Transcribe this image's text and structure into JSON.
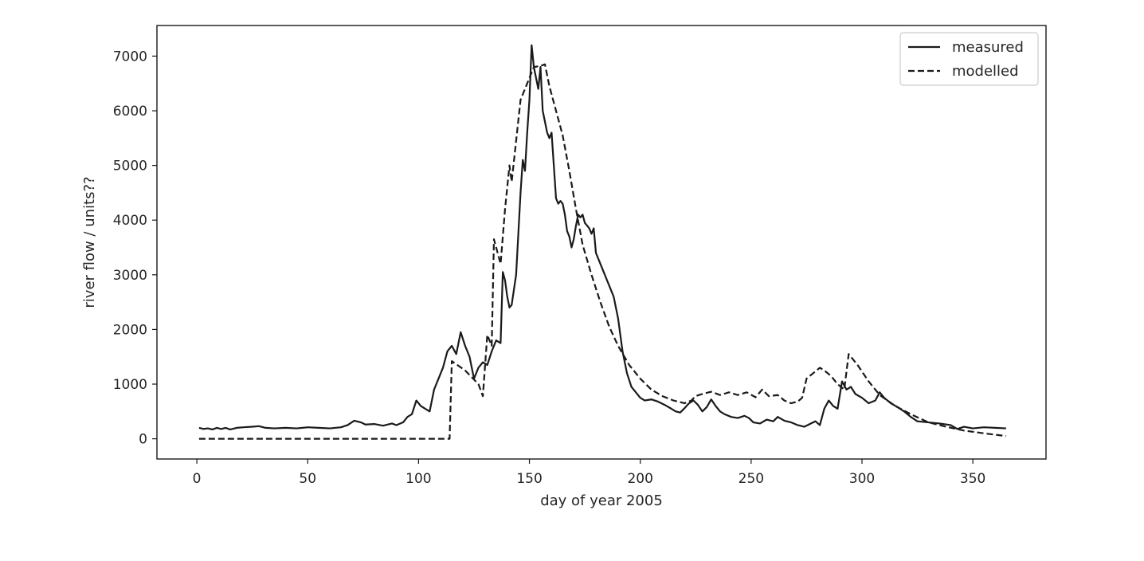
{
  "chart_data": {
    "type": "line",
    "title": "",
    "xlabel": "day of year 2005",
    "ylabel": "river flow / units??",
    "xlim": [
      -18,
      383
    ],
    "ylim": [
      -370,
      7560
    ],
    "xticks": [
      0,
      50,
      100,
      150,
      200,
      250,
      300,
      350
    ],
    "yticks": [
      0,
      1000,
      2000,
      3000,
      4000,
      5000,
      6000,
      7000
    ],
    "grid": false,
    "legend_position": "upper right",
    "series": [
      {
        "name": "measured",
        "style": "solid",
        "color": "#1a1a1a",
        "points": [
          [
            1,
            200
          ],
          [
            3,
            180
          ],
          [
            5,
            190
          ],
          [
            7,
            170
          ],
          [
            9,
            200
          ],
          [
            11,
            180
          ],
          [
            13,
            200
          ],
          [
            15,
            170
          ],
          [
            18,
            200
          ],
          [
            21,
            210
          ],
          [
            25,
            220
          ],
          [
            28,
            230
          ],
          [
            31,
            200
          ],
          [
            35,
            190
          ],
          [
            40,
            200
          ],
          [
            45,
            190
          ],
          [
            50,
            210
          ],
          [
            55,
            200
          ],
          [
            60,
            190
          ],
          [
            65,
            210
          ],
          [
            68,
            250
          ],
          [
            71,
            330
          ],
          [
            74,
            300
          ],
          [
            76,
            260
          ],
          [
            80,
            270
          ],
          [
            84,
            240
          ],
          [
            88,
            280
          ],
          [
            90,
            250
          ],
          [
            93,
            300
          ],
          [
            95,
            400
          ],
          [
            97,
            450
          ],
          [
            99,
            700
          ],
          [
            101,
            600
          ],
          [
            103,
            550
          ],
          [
            105,
            500
          ],
          [
            107,
            900
          ],
          [
            109,
            1100
          ],
          [
            111,
            1300
          ],
          [
            113,
            1600
          ],
          [
            115,
            1700
          ],
          [
            117,
            1550
          ],
          [
            119,
            1950
          ],
          [
            121,
            1700
          ],
          [
            123,
            1500
          ],
          [
            125,
            1100
          ],
          [
            127,
            1300
          ],
          [
            129,
            1400
          ],
          [
            131,
            1350
          ],
          [
            133,
            1600
          ],
          [
            135,
            1800
          ],
          [
            137,
            1750
          ],
          [
            138,
            3050
          ],
          [
            139,
            2900
          ],
          [
            140,
            2600
          ],
          [
            141,
            2400
          ],
          [
            142,
            2450
          ],
          [
            144,
            3000
          ],
          [
            146,
            4500
          ],
          [
            147,
            5100
          ],
          [
            148,
            4900
          ],
          [
            149,
            5600
          ],
          [
            150,
            6200
          ],
          [
            151,
            7200
          ],
          [
            152,
            6800
          ],
          [
            153,
            6600
          ],
          [
            154,
            6400
          ],
          [
            155,
            6800
          ],
          [
            156,
            6000
          ],
          [
            157,
            5800
          ],
          [
            158,
            5600
          ],
          [
            159,
            5500
          ],
          [
            160,
            5600
          ],
          [
            161,
            5000
          ],
          [
            162,
            4400
          ],
          [
            163,
            4300
          ],
          [
            164,
            4350
          ],
          [
            165,
            4300
          ],
          [
            166,
            4100
          ],
          [
            167,
            3800
          ],
          [
            168,
            3700
          ],
          [
            169,
            3500
          ],
          [
            170,
            3650
          ],
          [
            171,
            3900
          ],
          [
            172,
            4100
          ],
          [
            173,
            4050
          ],
          [
            174,
            4100
          ],
          [
            175,
            3950
          ],
          [
            176,
            3900
          ],
          [
            177,
            3850
          ],
          [
            178,
            3750
          ],
          [
            179,
            3850
          ],
          [
            180,
            3400
          ],
          [
            181,
            3300
          ],
          [
            182,
            3200
          ],
          [
            184,
            3000
          ],
          [
            186,
            2800
          ],
          [
            188,
            2600
          ],
          [
            190,
            2200
          ],
          [
            192,
            1600
          ],
          [
            194,
            1200
          ],
          [
            196,
            950
          ],
          [
            198,
            850
          ],
          [
            200,
            750
          ],
          [
            202,
            700
          ],
          [
            205,
            720
          ],
          [
            208,
            680
          ],
          [
            211,
            620
          ],
          [
            214,
            550
          ],
          [
            216,
            500
          ],
          [
            218,
            480
          ],
          [
            220,
            560
          ],
          [
            222,
            650
          ],
          [
            224,
            700
          ],
          [
            226,
            620
          ],
          [
            228,
            500
          ],
          [
            230,
            580
          ],
          [
            232,
            720
          ],
          [
            234,
            600
          ],
          [
            236,
            500
          ],
          [
            238,
            450
          ],
          [
            241,
            400
          ],
          [
            244,
            380
          ],
          [
            247,
            420
          ],
          [
            249,
            380
          ],
          [
            251,
            300
          ],
          [
            254,
            280
          ],
          [
            257,
            350
          ],
          [
            260,
            320
          ],
          [
            262,
            400
          ],
          [
            265,
            330
          ],
          [
            268,
            300
          ],
          [
            271,
            250
          ],
          [
            274,
            220
          ],
          [
            277,
            280
          ],
          [
            279,
            320
          ],
          [
            281,
            250
          ],
          [
            283,
            550
          ],
          [
            285,
            700
          ],
          [
            287,
            600
          ],
          [
            289,
            550
          ],
          [
            291,
            1050
          ],
          [
            293,
            900
          ],
          [
            295,
            950
          ],
          [
            297,
            820
          ],
          [
            300,
            750
          ],
          [
            303,
            650
          ],
          [
            306,
            700
          ],
          [
            308,
            850
          ],
          [
            310,
            750
          ],
          [
            313,
            650
          ],
          [
            316,
            580
          ],
          [
            319,
            500
          ],
          [
            322,
            400
          ],
          [
            325,
            320
          ],
          [
            330,
            300
          ],
          [
            335,
            280
          ],
          [
            340,
            250
          ],
          [
            343,
            180
          ],
          [
            346,
            220
          ],
          [
            350,
            190
          ],
          [
            355,
            210
          ],
          [
            360,
            200
          ],
          [
            365,
            190
          ]
        ]
      },
      {
        "name": "modelled",
        "style": "dashed",
        "color": "#1a1a1a",
        "points": [
          [
            1,
            0
          ],
          [
            114,
            0
          ],
          [
            115,
            1420
          ],
          [
            121,
            1250
          ],
          [
            127,
            1000
          ],
          [
            129,
            780
          ],
          [
            131,
            1900
          ],
          [
            133,
            1700
          ],
          [
            134,
            3650
          ],
          [
            137,
            3200
          ],
          [
            139,
            4200
          ],
          [
            141,
            5000
          ],
          [
            142,
            4700
          ],
          [
            146,
            6200
          ],
          [
            150,
            6600
          ],
          [
            152,
            6800
          ],
          [
            155,
            6820
          ],
          [
            157,
            6850
          ],
          [
            159,
            6450
          ],
          [
            162,
            6000
          ],
          [
            165,
            5550
          ],
          [
            168,
            4900
          ],
          [
            171,
            4200
          ],
          [
            174,
            3550
          ],
          [
            178,
            3000
          ],
          [
            182,
            2500
          ],
          [
            186,
            2050
          ],
          [
            190,
            1700
          ],
          [
            195,
            1350
          ],
          [
            200,
            1100
          ],
          [
            205,
            900
          ],
          [
            210,
            780
          ],
          [
            215,
            700
          ],
          [
            220,
            650
          ],
          [
            223,
            700
          ],
          [
            225,
            780
          ],
          [
            228,
            820
          ],
          [
            232,
            860
          ],
          [
            236,
            800
          ],
          [
            240,
            850
          ],
          [
            244,
            800
          ],
          [
            248,
            850
          ],
          [
            252,
            760
          ],
          [
            255,
            900
          ],
          [
            258,
            780
          ],
          [
            262,
            800
          ],
          [
            265,
            700
          ],
          [
            268,
            650
          ],
          [
            271,
            680
          ],
          [
            273,
            750
          ],
          [
            275,
            1100
          ],
          [
            278,
            1200
          ],
          [
            281,
            1300
          ],
          [
            283,
            1250
          ],
          [
            286,
            1150
          ],
          [
            289,
            1000
          ],
          [
            292,
            900
          ],
          [
            294,
            1550
          ],
          [
            298,
            1350
          ],
          [
            303,
            1050
          ],
          [
            308,
            800
          ],
          [
            315,
            600
          ],
          [
            322,
            450
          ],
          [
            330,
            300
          ],
          [
            338,
            220
          ],
          [
            346,
            150
          ],
          [
            355,
            100
          ],
          [
            365,
            50
          ]
        ]
      }
    ]
  }
}
